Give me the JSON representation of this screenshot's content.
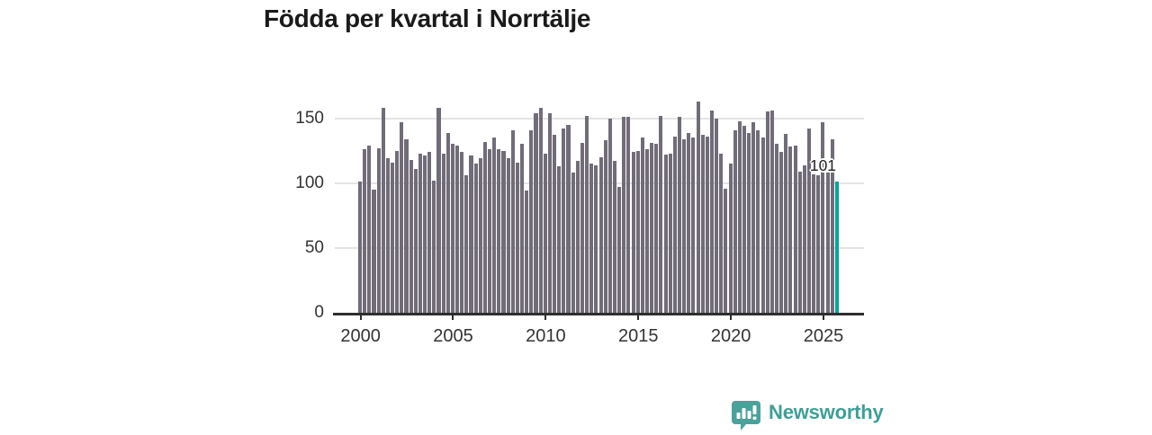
{
  "title": "Födda per kvartal i Norrtälje",
  "annotation": {
    "label": "101"
  },
  "branding": {
    "name": "Newsworthy",
    "icon": "bar-chart-speech-bubble-icon"
  },
  "colors": {
    "bar": "#716c78",
    "highlight": "#00a49b",
    "axis": "#2e2e2e",
    "grid": "#e4e4e4",
    "tick_text": "#333333",
    "title_text": "#1a1a1a",
    "brand_teal": "#3f9e97"
  },
  "chart_data": {
    "type": "bar",
    "title": "Födda per kvartal i Norrtälje",
    "xlabel": "",
    "ylabel": "",
    "frequency": "quarterly",
    "x_start": "2000-Q1",
    "x_end": "2025-Q4",
    "xticks": [
      2000,
      2005,
      2010,
      2015,
      2020,
      2025
    ],
    "yticks": [
      0,
      50,
      100,
      150
    ],
    "ylim": [
      0,
      165
    ],
    "grid": true,
    "legend": false,
    "highlight_index": 103,
    "highlight_value": 101,
    "series": [
      {
        "name": "Födda per kvartal",
        "values": [
          101,
          126,
          129,
          95,
          127,
          158,
          119,
          116,
          125,
          147,
          134,
          118,
          111,
          123,
          121,
          124,
          102,
          158,
          123,
          139,
          130,
          129,
          124,
          106,
          121,
          115,
          119,
          132,
          126,
          135,
          126,
          125,
          119,
          141,
          116,
          130,
          94,
          141,
          154,
          158,
          123,
          154,
          137,
          113,
          142,
          145,
          108,
          117,
          131,
          152,
          115,
          114,
          120,
          133,
          150,
          117,
          97,
          151,
          151,
          124,
          125,
          135,
          126,
          131,
          130,
          152,
          122,
          123,
          136,
          151,
          134,
          139,
          135,
          163,
          137,
          136,
          156,
          150,
          123,
          96,
          115,
          141,
          148,
          144,
          139,
          147,
          141,
          135,
          155,
          156,
          130,
          124,
          138,
          128,
          129,
          109,
          114,
          142,
          107,
          106,
          147,
          108,
          134,
          101
        ]
      }
    ]
  }
}
